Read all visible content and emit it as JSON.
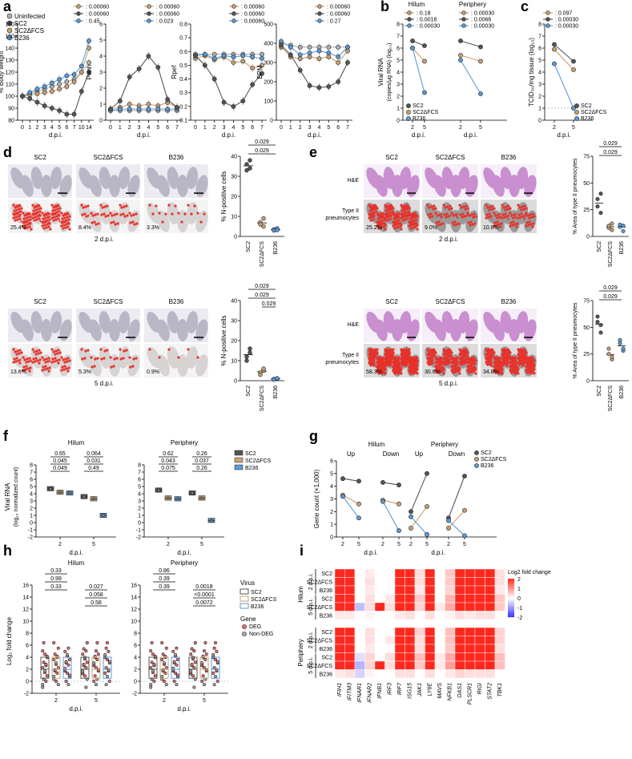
{
  "colors": {
    "SC2": "#555555",
    "SC2dFCS": "#c9a072",
    "B236": "#5b9bd5",
    "Uninfected": "#b0b0b0",
    "red": "#e8312a",
    "deg": "#f16d6d",
    "nondeg": "#aaaaaa"
  },
  "panels": {
    "a": {
      "label": "a",
      "legend": [
        "Uninfected",
        "SC2",
        "SC2ΔFCS",
        "B236"
      ],
      "plots": [
        {
          "ylabel": "% Body weight",
          "yticks": [
            "80",
            "90",
            "100",
            "110",
            "120",
            "130",
            "140",
            "150",
            "160"
          ],
          "xticks": [
            "0",
            "1",
            "2",
            "3",
            "4",
            "5",
            "6",
            "7",
            "10",
            "14"
          ],
          "pvals": [
            "0.00060",
            "0.00060",
            "0.45"
          ],
          "xlabel": "d.p.i."
        },
        {
          "ylabel": "Penh",
          "yticks": [
            "0",
            "1",
            "2",
            "3",
            "4",
            "5",
            "6"
          ],
          "xticks": [
            "0",
            "1",
            "2",
            "3",
            "4",
            "5",
            "6",
            "7"
          ],
          "pvals": [
            "0.00060",
            "0.00060",
            "0.023"
          ],
          "xlabel": "d.p.i."
        },
        {
          "ylabel": "Rpef",
          "yticks": [
            "0.1",
            "0.2",
            "0.3",
            "0.4",
            "0.5",
            "0.6",
            "0.7",
            "0.8"
          ],
          "xticks": [
            "0",
            "1",
            "2",
            "3",
            "4",
            "5",
            "6",
            "7"
          ],
          "pvals": [
            "0.00060",
            "0.00060",
            "0.00060"
          ],
          "xlabel": "d.p.i."
        },
        {
          "ylabel": "BPM",
          "yticks": [
            "0",
            "100",
            "200",
            "300",
            "400",
            "500"
          ],
          "xticks": [
            "0",
            "1",
            "2",
            "3",
            "4",
            "5",
            "6",
            "7"
          ],
          "pvals": [
            "0.00060",
            "0.00060",
            "0.27"
          ],
          "xlabel": "d.p.i."
        }
      ]
    },
    "b": {
      "label": "b",
      "titles": [
        "Hilum",
        "Periphery"
      ],
      "ylabel": "Viral RNA",
      "ylabel2": "(copies/μg RNA) (log₁₀)",
      "yticks": [
        "0",
        "1",
        "2",
        "3",
        "4",
        "5",
        "6",
        "7",
        "8"
      ],
      "xticks": [
        "2",
        "5"
      ],
      "xlabel": "d.p.i.",
      "pvals_hilum": [
        "0.18",
        "0.0018",
        "0.00030"
      ],
      "pvals_periphery": [
        "0.00030",
        "0.0066",
        "0.00030"
      ],
      "legend": [
        "SC2",
        "SC2ΔFCS",
        "B236"
      ]
    },
    "c": {
      "label": "c",
      "ylabel": "TCID₅₀/mg tissue (log₁₀)",
      "yticks": [
        "0",
        "1",
        "2",
        "3",
        "4",
        "5",
        "6",
        "7",
        "8"
      ],
      "xticks": [
        "2",
        "5"
      ],
      "xlabel": "d.p.i.",
      "pvals": [
        "0.097",
        "0.00030",
        "0.00030"
      ],
      "legend": [
        "SC2",
        "SC2ΔFCS",
        "B236"
      ]
    },
    "d": {
      "label": "d",
      "cols": [
        "SC2",
        "SC2ΔFCS",
        "B236"
      ],
      "rows": [
        {
          "day": "2 d.p.i.",
          "pct": [
            "25.4%",
            "8.4%",
            "3.3%"
          ]
        },
        {
          "day": "5 d.p.i.",
          "pct": [
            "13.6%",
            "5.3%",
            "0.9%"
          ]
        }
      ],
      "ylabel": "% N-positive cells",
      "yticks": [
        "0",
        "10",
        "20",
        "30",
        "40"
      ],
      "xcats": [
        "SC2",
        "SC2ΔFCS",
        "B236"
      ],
      "p_top": [
        "0.029",
        "0.029"
      ],
      "p_bottom": [
        "0.029",
        "0.029",
        "0.029"
      ]
    },
    "e": {
      "label": "e",
      "cols": [
        "SC2",
        "SC2ΔFCS",
        "B236"
      ],
      "rowlabels": [
        "H&E",
        "Type II pneumocytes"
      ],
      "rows": [
        {
          "day": "2 d.p.i.",
          "pct": [
            "25.2%",
            "9.0%",
            "10.8%"
          ]
        },
        {
          "day": "5 d.p.i.",
          "pct": [
            "58.3%",
            "30.6%",
            "34.8%"
          ]
        }
      ],
      "ylabel": "% Area of type II pneumocytes",
      "yticks": [
        "0",
        "25",
        "50",
        "75"
      ],
      "xcats": [
        "SC2",
        "SC2ΔFCS",
        "B236"
      ],
      "p_top": [
        "0.029",
        "0.029"
      ],
      "p_bottom": [
        "0.029",
        "0.029"
      ]
    },
    "f": {
      "label": "f",
      "titles": [
        "Hilum",
        "Periphery"
      ],
      "ylabel": "Viral RNA",
      "ylabel2": "(log₁₀ normalized count)",
      "yticks": [
        "-2",
        "-1",
        "0",
        "1",
        "2",
        "3",
        "4",
        "5",
        "6",
        "7",
        "8"
      ],
      "xticks": [
        "2",
        "5"
      ],
      "xlabel": "d.p.i.",
      "legend": [
        "SC2",
        "SC2ΔFCS",
        "B236"
      ],
      "pvals_hilum": [
        "0.65",
        "0.045",
        "0.049",
        "0.064",
        "0.031",
        "0.49"
      ],
      "pvals_periphery": [
        "0.62",
        "0.043",
        "0.075",
        "0.26",
        "0.037",
        "0.26"
      ]
    },
    "g": {
      "label": "g",
      "titles": [
        "Hilum",
        "Periphery"
      ],
      "sub": [
        "Up",
        "Down",
        "Up",
        "Down"
      ],
      "ylabel": "Gene count (×1,000)",
      "yticks": [
        "0",
        "1",
        "2",
        "3",
        "4",
        "5",
        "6"
      ],
      "xticks": [
        "2",
        "5"
      ],
      "xlabel": "d.p.i.",
      "legend": [
        "SC2",
        "SC2ΔFCS",
        "B236"
      ]
    },
    "h": {
      "label": "h",
      "titles": [
        "Hilum",
        "Periphery"
      ],
      "ylabel": "Log₂ fold change",
      "yticks": [
        "-2",
        "0",
        "2",
        "4",
        "6",
        "8",
        "10",
        "12",
        "14",
        "16"
      ],
      "xticks": [
        "2",
        "5"
      ],
      "xlabel": "d.p.i.",
      "pvals_hilum": [
        "0.33",
        "0.99",
        "0.33",
        "0.027",
        "0.058",
        "0.58"
      ],
      "pvals_periphery": [
        "0.86",
        "0.39",
        "0.39",
        "0.0018",
        "<0.0001",
        "0.0072"
      ],
      "legend_virus_title": "Virus",
      "legend_virus": [
        "SC2",
        "SC2ΔFCS",
        "B236"
      ],
      "legend_gene_title": "Gene",
      "legend_gene": [
        "DEG",
        "Non-DEG"
      ]
    },
    "i": {
      "label": "i",
      "groups": [
        "Hilum",
        "Periphery"
      ],
      "days": [
        "2 d.p.i.",
        "5 d.p.i."
      ],
      "rows": [
        "SC2",
        "SC2ΔFCS",
        "B236"
      ],
      "genes": [
        "IFIH1",
        "IFITM3",
        "IFNAR1",
        "IFNAR2",
        "IFNB1",
        "IRF3",
        "IRF7",
        "ISG15",
        "JAK1",
        "LY6E",
        "MAVS",
        "NFKB1",
        "OAS1",
        "PLSCR1",
        "RIGI",
        "STAT2",
        "TBK1"
      ],
      "scale_title": "Log2 fold change",
      "scale_ticks": [
        "2",
        "1",
        "0",
        "-1",
        "-2"
      ],
      "matrix": [
        [
          2,
          2,
          0,
          0.2,
          0,
          0,
          2,
          2,
          0.3,
          2,
          0,
          0.5,
          2,
          2,
          2,
          2,
          0.3
        ],
        [
          2,
          2,
          0,
          0.3,
          0,
          0,
          2,
          2,
          0.3,
          2,
          0,
          0.5,
          2,
          2,
          2,
          2,
          0.3
        ],
        [
          2,
          2,
          0,
          0.2,
          0,
          0,
          2,
          2,
          0.2,
          2,
          0,
          0.4,
          2,
          2,
          2,
          2,
          0.2
        ],
        [
          2,
          2,
          0,
          0.3,
          0,
          0.2,
          2,
          2,
          0.5,
          2,
          0,
          0.7,
          2,
          2,
          2,
          2,
          0.5
        ],
        [
          2,
          2,
          -0.6,
          0.3,
          2,
          0.3,
          2,
          2,
          0.4,
          2,
          0.2,
          0.8,
          2,
          2,
          2,
          2,
          0.5
        ],
        [
          0.2,
          0.2,
          0,
          0.1,
          0,
          0,
          0.2,
          0.3,
          0,
          0.3,
          0,
          0.1,
          0.3,
          0.2,
          0.3,
          0.3,
          0
        ],
        [
          2,
          2,
          0,
          0.3,
          0,
          0,
          2,
          2,
          0.4,
          2,
          0,
          0.6,
          2,
          2,
          2,
          2,
          0.4
        ],
        [
          2,
          2,
          0,
          0.3,
          0,
          0.2,
          2,
          2,
          0.3,
          2,
          0,
          0.6,
          2,
          2,
          2,
          2,
          0.4
        ],
        [
          2,
          2,
          0,
          0.2,
          0,
          0,
          2,
          2,
          0.3,
          2,
          0,
          0.5,
          2,
          2,
          2,
          2,
          0.3
        ],
        [
          2,
          2,
          -0.3,
          0.4,
          0,
          0.3,
          2,
          2,
          0.6,
          2,
          0.2,
          0.8,
          2,
          2,
          2,
          2,
          0.6
        ],
        [
          2,
          2,
          -0.7,
          0.4,
          2,
          0.3,
          2,
          2,
          0.5,
          2,
          0.2,
          0.9,
          2,
          2,
          2,
          2,
          0.6
        ],
        [
          0.2,
          0.3,
          -0.4,
          0.1,
          0,
          0,
          0.3,
          0.3,
          0,
          0.3,
          0,
          0.2,
          0.4,
          0.3,
          0.3,
          0.3,
          0
        ]
      ]
    }
  }
}
